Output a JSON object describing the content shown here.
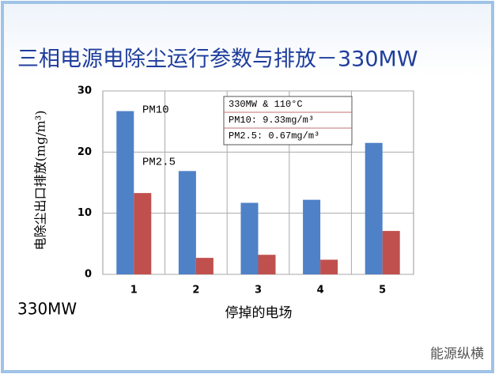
{
  "chart_data": {
    "type": "bar",
    "title": "三相电源电除尘运行参数与排放－330MW",
    "y_label": "电除尘出口排放(mg/m³)",
    "x_label": "停掉的电场",
    "footnote": "330MW",
    "watermark": "能源纵横",
    "annotations": [
      "330MW & 110°C",
      "PM10:  9.33mg/m³",
      "PM2.5: 0.67mg/m³"
    ],
    "categories": [
      "1",
      "2",
      "3",
      "4",
      "5"
    ],
    "series": [
      {
        "name": "PM10",
        "color": "#4f81c7",
        "values": [
          26.7,
          16.9,
          11.7,
          12.2,
          21.5
        ]
      },
      {
        "name": "PM2.5",
        "color": "#c0504d",
        "values": [
          13.3,
          2.7,
          3.2,
          2.4,
          7.1
        ]
      }
    ],
    "ylim": [
      0,
      30
    ],
    "yticks": [
      0,
      10,
      20,
      30
    ],
    "grid": true
  }
}
